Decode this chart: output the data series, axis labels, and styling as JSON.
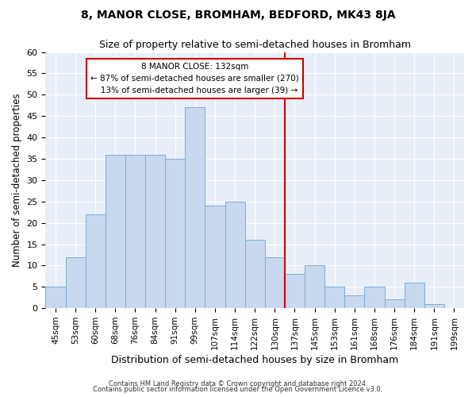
{
  "title": "8, MANOR CLOSE, BROMHAM, BEDFORD, MK43 8JA",
  "subtitle": "Size of property relative to semi-detached houses in Bromham",
  "xlabel": "Distribution of semi-detached houses by size in Bromham",
  "ylabel": "Number of semi-detached properties",
  "categories": [
    "45sqm",
    "53sqm",
    "60sqm",
    "68sqm",
    "76sqm",
    "84sqm",
    "91sqm",
    "99sqm",
    "107sqm",
    "114sqm",
    "122sqm",
    "130sqm",
    "137sqm",
    "145sqm",
    "153sqm",
    "161sqm",
    "168sqm",
    "176sqm",
    "184sqm",
    "191sqm",
    "199sqm"
  ],
  "values": [
    5,
    12,
    22,
    36,
    36,
    36,
    35,
    47,
    24,
    25,
    16,
    12,
    8,
    10,
    5,
    3,
    5,
    2,
    6,
    1,
    0
  ],
  "bar_color": "#c8d8ee",
  "bar_edge_color": "#7aadd4",
  "property_line_label": "8 MANOR CLOSE: 132sqm",
  "pct_smaller": 87,
  "n_smaller": 270,
  "pct_larger": 13,
  "n_larger": 39,
  "annotation_box_color": "#ffffff",
  "annotation_box_edge": "#cc0000",
  "line_color": "#cc0000",
  "ylim": [
    0,
    60
  ],
  "yticks": [
    0,
    5,
    10,
    15,
    20,
    25,
    30,
    35,
    40,
    45,
    50,
    55,
    60
  ],
  "footer_line1": "Contains HM Land Registry data © Crown copyright and database right 2024.",
  "footer_line2": "Contains public sector information licensed under the Open Government Licence v3.0.",
  "bg_color": "#ffffff",
  "plot_bg_color": "#e8eef8",
  "grid_color": "#ffffff",
  "title_fontsize": 10,
  "subtitle_fontsize": 9
}
